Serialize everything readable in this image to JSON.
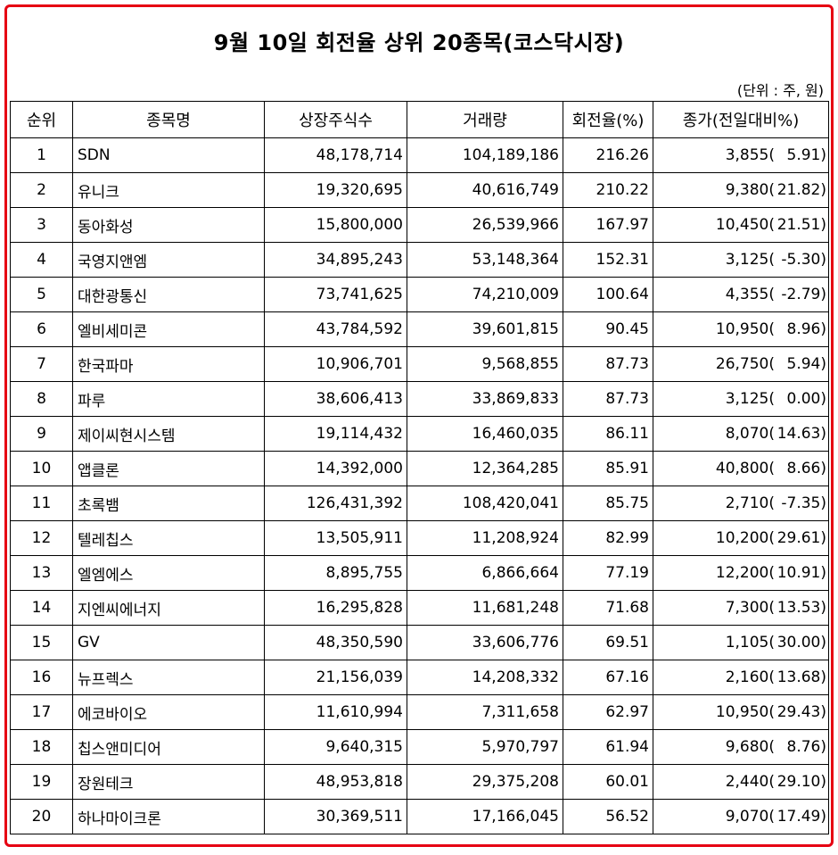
{
  "title": "9월 10일 회전율 상위 20종목(코스닥시장)",
  "unit_note": "(단위 : 주, 원)",
  "columns": [
    "순위",
    "종목명",
    "상장주식수",
    "거래량",
    "회전율(%)",
    "종가(전일대비%)"
  ],
  "accent_color": "#e60012",
  "rows": [
    {
      "rank": "1",
      "name": "SDN",
      "listed": "48,178,714",
      "volume": "104,189,186",
      "turnover": "216.26",
      "close": "3,855(",
      "change": "5.91)"
    },
    {
      "rank": "2",
      "name": "유니크",
      "listed": "19,320,695",
      "volume": "40,616,749",
      "turnover": "210.22",
      "close": "9,380(",
      "change": "21.82)"
    },
    {
      "rank": "3",
      "name": "동아화성",
      "listed": "15,800,000",
      "volume": "26,539,966",
      "turnover": "167.97",
      "close": "10,450(",
      "change": "21.51)"
    },
    {
      "rank": "4",
      "name": "국영지앤엠",
      "listed": "34,895,243",
      "volume": "53,148,364",
      "turnover": "152.31",
      "close": "3,125(",
      "change": "-5.30)"
    },
    {
      "rank": "5",
      "name": "대한광통신",
      "listed": "73,741,625",
      "volume": "74,210,009",
      "turnover": "100.64",
      "close": "4,355(",
      "change": "-2.79)"
    },
    {
      "rank": "6",
      "name": "엘비세미콘",
      "listed": "43,784,592",
      "volume": "39,601,815",
      "turnover": "90.45",
      "close": "10,950(",
      "change": "8.96)"
    },
    {
      "rank": "7",
      "name": "한국파마",
      "listed": "10,906,701",
      "volume": "9,568,855",
      "turnover": "87.73",
      "close": "26,750(",
      "change": "5.94)"
    },
    {
      "rank": "8",
      "name": "파루",
      "listed": "38,606,413",
      "volume": "33,869,833",
      "turnover": "87.73",
      "close": "3,125(",
      "change": "0.00)"
    },
    {
      "rank": "9",
      "name": "제이씨현시스템",
      "listed": "19,114,432",
      "volume": "16,460,035",
      "turnover": "86.11",
      "close": "8,070(",
      "change": "14.63)"
    },
    {
      "rank": "10",
      "name": "앱클론",
      "listed": "14,392,000",
      "volume": "12,364,285",
      "turnover": "85.91",
      "close": "40,800(",
      "change": "8.66)"
    },
    {
      "rank": "11",
      "name": "초록뱀",
      "listed": "126,431,392",
      "volume": "108,420,041",
      "turnover": "85.75",
      "close": "2,710(",
      "change": "-7.35)"
    },
    {
      "rank": "12",
      "name": "텔레칩스",
      "listed": "13,505,911",
      "volume": "11,208,924",
      "turnover": "82.99",
      "close": "10,200(",
      "change": "29.61)"
    },
    {
      "rank": "13",
      "name": "엘엠에스",
      "listed": "8,895,755",
      "volume": "6,866,664",
      "turnover": "77.19",
      "close": "12,200(",
      "change": "10.91)"
    },
    {
      "rank": "14",
      "name": "지엔씨에너지",
      "listed": "16,295,828",
      "volume": "11,681,248",
      "turnover": "71.68",
      "close": "7,300(",
      "change": "13.53)"
    },
    {
      "rank": "15",
      "name": "GV",
      "listed": "48,350,590",
      "volume": "33,606,776",
      "turnover": "69.51",
      "close": "1,105(",
      "change": "30.00)"
    },
    {
      "rank": "16",
      "name": "뉴프렉스",
      "listed": "21,156,039",
      "volume": "14,208,332",
      "turnover": "67.16",
      "close": "2,160(",
      "change": "13.68)"
    },
    {
      "rank": "17",
      "name": "에코바이오",
      "listed": "11,610,994",
      "volume": "7,311,658",
      "turnover": "62.97",
      "close": "10,950(",
      "change": "29.43)"
    },
    {
      "rank": "18",
      "name": "칩스앤미디어",
      "listed": "9,640,315",
      "volume": "5,970,797",
      "turnover": "61.94",
      "close": "9,680(",
      "change": "8.76)"
    },
    {
      "rank": "19",
      "name": "장원테크",
      "listed": "48,953,818",
      "volume": "29,375,208",
      "turnover": "60.01",
      "close": "2,440(",
      "change": "29.10)"
    },
    {
      "rank": "20",
      "name": "하나마이크론",
      "listed": "30,369,511",
      "volume": "17,166,045",
      "turnover": "56.52",
      "close": "9,070(",
      "change": "17.49)"
    }
  ]
}
